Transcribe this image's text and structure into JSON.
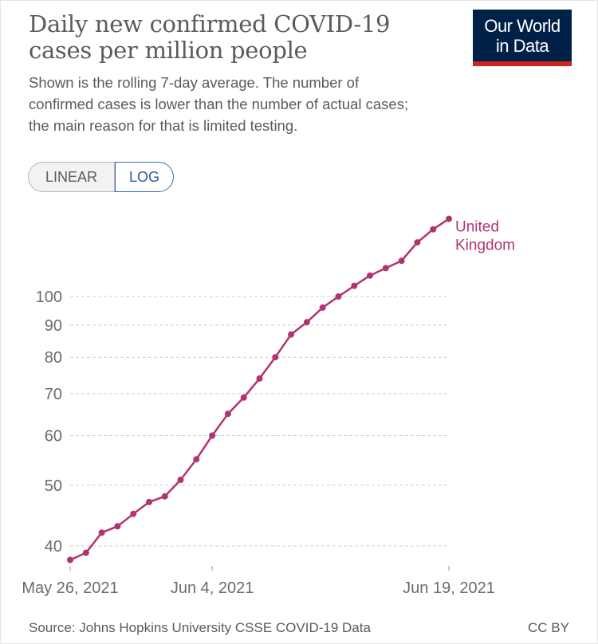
{
  "header": {
    "title": "Daily new confirmed COVID-19 cases per million people",
    "subtitle": "Shown is the rolling 7-day average. The number of confirmed cases is lower than the number of actual cases; the main reason for that is limited testing."
  },
  "logo": {
    "line1": "Our World",
    "line2": "in Data"
  },
  "scale_toggle": {
    "linear_label": "LINEAR",
    "log_label": "LOG",
    "selected": "LOG"
  },
  "chart_data": {
    "type": "line",
    "title": "Daily new confirmed COVID-19 cases per million people",
    "subtitle": "Shown is the rolling 7-day average. The number of confirmed cases is lower than the number of actual cases; the main reason for that is limited testing.",
    "y_scale": "log",
    "ylim": [
      37,
      140
    ],
    "y_ticks": [
      40,
      50,
      60,
      70,
      80,
      90,
      100
    ],
    "y_tick_labels": [
      "40",
      "50",
      "60",
      "70",
      "80",
      "90",
      "100"
    ],
    "x_start": "2021-05-26",
    "x_end": "2021-06-19",
    "x_ticks": [
      "2021-05-26",
      "2021-06-04",
      "2021-06-19"
    ],
    "x_tick_labels": [
      "May 26, 2021",
      "Jun 4, 2021",
      "Jun 19, 2021"
    ],
    "grid": "horizontal dashed",
    "series": [
      {
        "name": "United Kingdom",
        "color": "#b13470",
        "x": [
          "2021-05-26",
          "2021-05-27",
          "2021-05-28",
          "2021-05-29",
          "2021-05-30",
          "2021-05-31",
          "2021-06-01",
          "2021-06-02",
          "2021-06-03",
          "2021-06-04",
          "2021-06-05",
          "2021-06-06",
          "2021-06-07",
          "2021-06-08",
          "2021-06-09",
          "2021-06-10",
          "2021-06-11",
          "2021-06-12",
          "2021-06-13",
          "2021-06-14",
          "2021-06-15",
          "2021-06-16",
          "2021-06-17",
          "2021-06-18",
          "2021-06-19"
        ],
        "values": [
          38,
          39,
          42,
          43,
          45,
          47,
          48,
          51,
          55,
          60,
          65,
          69,
          74,
          80,
          87,
          91,
          96,
          100,
          104,
          108,
          111,
          114,
          122,
          128,
          133
        ]
      }
    ]
  },
  "footer": {
    "source": "Source: Johns Hopkins University CSSE COVID-19 Data",
    "license": "CC BY"
  }
}
